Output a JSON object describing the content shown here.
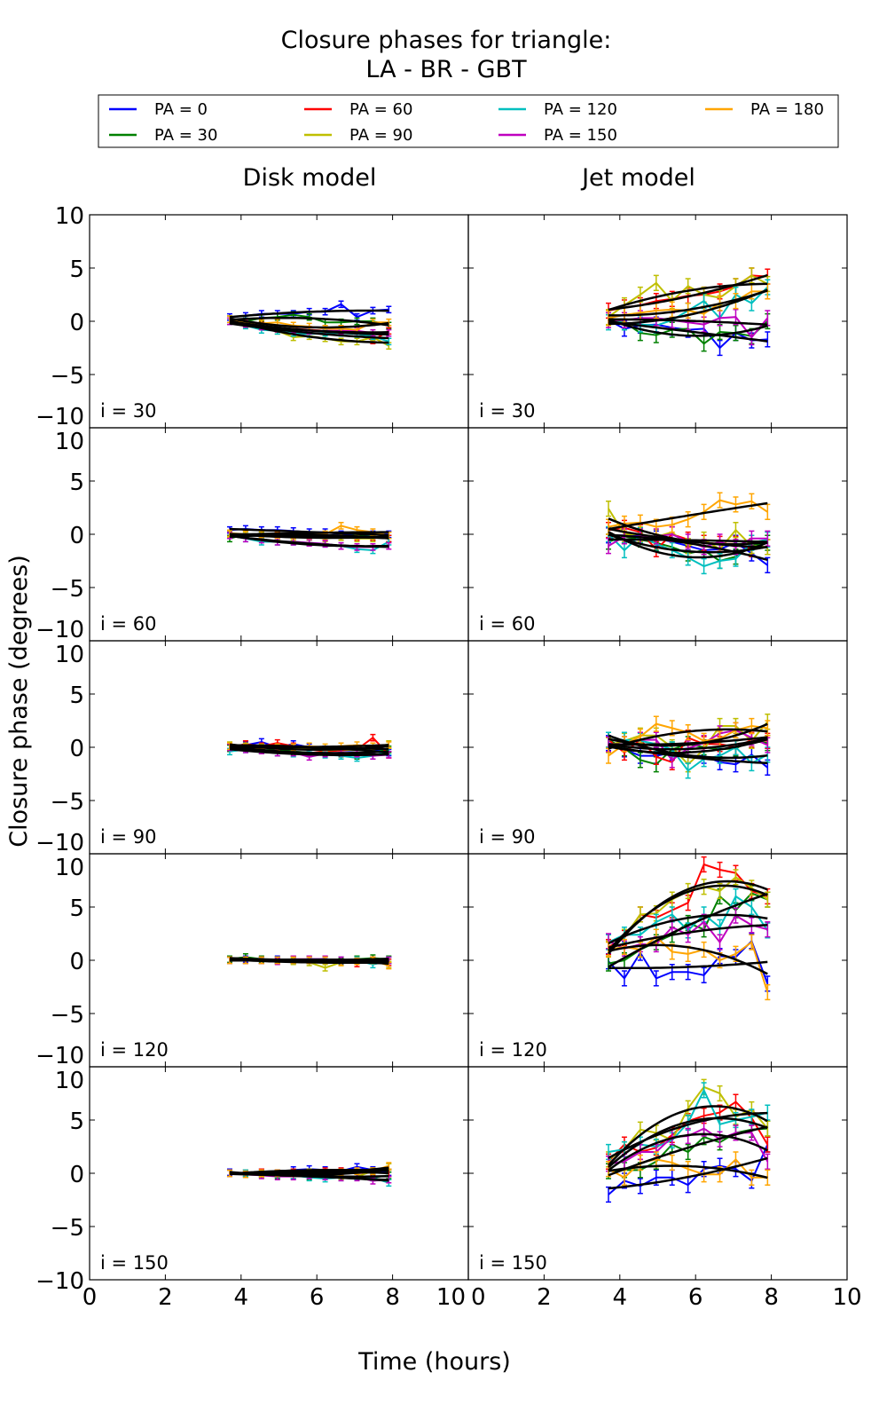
{
  "chart_data": {
    "type": "line",
    "title_line1": "Closure phases for triangle:",
    "title_line2": "LA - BR - GBT",
    "xlabel": "Time (hours)",
    "ylabel": "Closure phase (degrees)",
    "xlim": [
      0,
      10
    ],
    "ylim": [
      -10,
      10
    ],
    "xticks": [
      "0",
      "2",
      "4",
      "6",
      "8",
      "10"
    ],
    "yticks": [
      "10",
      "5",
      "0",
      "−5",
      "−10"
    ],
    "legend_placement": "top, above panels (4 columns)",
    "columns": [
      "Disk model",
      "Jet model"
    ],
    "rows": [
      "i = 30",
      "i = 60",
      "i = 90",
      "i = 120",
      "i = 150"
    ],
    "legend": [
      {
        "label": "PA = 0",
        "color": "#0000ff"
      },
      {
        "label": "PA = 30",
        "color": "#008000"
      },
      {
        "label": "PA = 60",
        "color": "#ff0000"
      },
      {
        "label": "PA = 90",
        "color": "#bfbf00"
      },
      {
        "label": "PA = 120",
        "color": "#00bfbf"
      },
      {
        "label": "PA = 150",
        "color": "#bf00bf"
      },
      {
        "label": "PA = 180",
        "color": "#ffa500"
      }
    ],
    "x": [
      3.7,
      4.12,
      4.54,
      4.96,
      5.38,
      5.8,
      6.22,
      6.64,
      7.06,
      7.48,
      7.9
    ],
    "error": {
      "Disk model": 0.3,
      "Jet model": 0.7
    },
    "panels": {
      "Disk model": [
        [
          [
            0.4,
            0.5,
            0.7,
            0.7,
            0.7,
            0.9,
            0.9,
            1.6,
            0.4,
            1.0,
            1.1
          ],
          [
            0.2,
            0,
            0.3,
            0.4,
            0.6,
            0.4,
            -0.1,
            -0.1,
            0,
            0,
            -0.4
          ],
          [
            0,
            -0.25,
            -0.4,
            -0.7,
            -0.7,
            -0.8,
            -0.9,
            -0.9,
            -1.1,
            -1.8,
            -0.9
          ],
          [
            0,
            -0.25,
            -0.5,
            -0.9,
            -1.5,
            -1.4,
            -1.6,
            -1.9,
            -1.9,
            -1.5,
            -2.3
          ],
          [
            0,
            -0.4,
            -0.8,
            -0.9,
            -1.1,
            -1.2,
            -1.1,
            -1.1,
            -1.2,
            -1.4,
            -1.9
          ],
          [
            0,
            -0.25,
            -0.5,
            -0.7,
            -0.8,
            -0.9,
            -0.9,
            -0.9,
            -0.9,
            -1.1,
            -1.1
          ],
          [
            0.2,
            -0.1,
            -0.2,
            -0.1,
            -0.4,
            -0.5,
            -0.7,
            -0.7,
            -0.8,
            -0.1,
            -0.1
          ]
        ],
        [
          [
            0.4,
            0.5,
            0.4,
            0.4,
            0.3,
            0.2,
            0.2,
            0,
            -0.1,
            0,
            0
          ],
          [
            -0.4,
            0,
            0,
            -0.1,
            -0.1,
            -0.1,
            -0.1,
            -0.25,
            -0.1,
            -0.25,
            -0.4
          ],
          [
            0,
            0,
            0,
            -0.1,
            -0.1,
            -0.25,
            -0.25,
            -0.25,
            -0.25,
            -0.25,
            -0.4
          ],
          [
            0,
            -0.1,
            -0.1,
            -0.25,
            -0.25,
            -0.25,
            -0.4,
            -0.25,
            -0.4,
            -0.4,
            -0.1
          ],
          [
            -0.1,
            -0.4,
            -0.7,
            -0.7,
            -0.7,
            -0.8,
            -0.9,
            -1.1,
            -1.4,
            -1.5,
            -0.7
          ],
          [
            -0.1,
            -0.4,
            -0.5,
            -0.7,
            -0.7,
            -0.8,
            -0.9,
            -1.1,
            -1.2,
            -1.2,
            -1.1
          ],
          [
            0.1,
            0,
            0,
            -0.05,
            -0.1,
            -0.1,
            0,
            0.8,
            0.4,
            0.2,
            -0.1
          ]
        ],
        [
          [
            0,
            0.2,
            0.5,
            0,
            0.3,
            0,
            -0.2,
            -0.3,
            -0.3,
            -0.2,
            -0.5
          ],
          [
            -0.1,
            0,
            -0.3,
            -0.2,
            -0.4,
            -0.5,
            -0.5,
            -0.6,
            -0.8,
            -0.5,
            -0.2
          ],
          [
            0,
            0.3,
            0.1,
            0.4,
            0.1,
            -0.2,
            -0.4,
            -0.3,
            -0.2,
            0.9,
            -0.7
          ],
          [
            0.2,
            0.1,
            0,
            -0.1,
            0,
            -0.2,
            -0.3,
            -0.2,
            -0.3,
            -0.1,
            0.3
          ],
          [
            -0.4,
            -0.2,
            -0.3,
            -0.5,
            -0.6,
            -0.6,
            -0.7,
            -0.8,
            -1.0,
            -0.8,
            -0.4
          ],
          [
            0,
            -0.2,
            -0.3,
            -0.5,
            -0.5,
            -0.9,
            -0.6,
            -0.5,
            -0.6,
            -0.8,
            -0.7
          ],
          [
            0.1,
            0,
            -0.1,
            0,
            0,
            0.1,
            0,
            0.1,
            0.2,
            0.1,
            0.2
          ]
        ],
        [
          [
            0,
            0.1,
            0,
            0.1,
            0,
            0.1,
            0.1,
            0,
            0.1,
            0,
            0
          ],
          [
            0.1,
            0.3,
            0.1,
            0,
            0.1,
            0,
            0,
            -0.1,
            0.1,
            0.2,
            0.1
          ],
          [
            0,
            0,
            0,
            0,
            0,
            0,
            0,
            0,
            -0.3,
            0,
            -0.2
          ],
          [
            0,
            0,
            0,
            0,
            -0.1,
            -0.2,
            -0.7,
            -0.2,
            0,
            0,
            -0.4
          ],
          [
            0,
            0,
            0,
            0,
            0,
            0,
            0,
            0,
            0,
            -0.4,
            0
          ],
          [
            0,
            0,
            0,
            -0.1,
            0.1,
            0.1,
            0.1,
            0,
            -0.1,
            0,
            0
          ],
          [
            0,
            0,
            0,
            0,
            0,
            0,
            0,
            -0.2,
            -0.1,
            0,
            -0.5
          ]
        ],
        [
          [
            0.1,
            0,
            0.1,
            0,
            0.3,
            0.4,
            0.3,
            0.2,
            0.6,
            0.3,
            0.1
          ],
          [
            0,
            0,
            -0.1,
            -0.2,
            -0.2,
            -0.3,
            -0.3,
            -0.3,
            -0.3,
            -0.4,
            -0.2
          ],
          [
            0,
            0,
            0.1,
            0,
            0.1,
            0.1,
            0.2,
            0.2,
            0,
            0.1,
            0
          ],
          [
            0,
            0,
            -0.1,
            -0.1,
            0,
            0.1,
            -0.2,
            -0.3,
            -0.3,
            0.2,
            0.6
          ],
          [
            0,
            0,
            0,
            -0.1,
            -0.2,
            -0.4,
            -0.5,
            -0.4,
            -0.3,
            -0.4,
            -0.9
          ],
          [
            0,
            -0.1,
            -0.2,
            -0.3,
            -0.3,
            -0.2,
            -0.3,
            -0.4,
            -0.4,
            -0.7,
            -0.6
          ],
          [
            0,
            -0.1,
            0,
            0,
            0,
            0,
            0,
            0.1,
            0.2,
            0.2,
            0.7
          ]
        ]
      ],
      "Jet model": [
        [
          [
            0.1,
            -0.7,
            -0.4,
            -0.3,
            -0.6,
            -0.8,
            -0.7,
            -2.5,
            -1.1,
            -1.8,
            -1.7
          ],
          [
            0.1,
            -0.1,
            -1.1,
            -1.3,
            -0.8,
            -0.7,
            -2.1,
            -1.0,
            -1.1,
            -1.4,
            0
          ],
          [
            1.0,
            1.3,
            1.5,
            1.9,
            2.1,
            2.4,
            2.5,
            2.8,
            3.3,
            4.3,
            4.2
          ],
          [
            0.4,
            1.5,
            2.5,
            3.6,
            1.9,
            3.3,
            2.5,
            2.2,
            3.3,
            4.3,
            3.5
          ],
          [
            -0.1,
            -0.1,
            -0.3,
            -0.4,
            0.1,
            1.0,
            1.9,
            0.3,
            2.5,
            1.7,
            3.2
          ],
          [
            0.1,
            0.1,
            0.3,
            0.3,
            0.1,
            -0.1,
            -0.3,
            0.3,
            0.4,
            -1.5,
            0.3
          ],
          [
            0.3,
            0.6,
            0.8,
            1.0,
            1.1,
            1.0,
            0.7,
            1.7,
            1.9,
            2.8,
            2.8
          ]
        ],
        [
          [
            -0.1,
            -0.1,
            -0.1,
            -0.4,
            -0.7,
            -1.1,
            -1.5,
            -1.4,
            -0.8,
            -1.8,
            -2.9
          ],
          [
            -0.7,
            -0.2,
            -0.5,
            -0.8,
            -1.2,
            -1.8,
            -1.5,
            -2.5,
            -2.1,
            -1.1,
            -0.8
          ],
          [
            0.4,
            0.6,
            0.2,
            -1.4,
            0,
            -0.5,
            -0.8,
            -0.9,
            -0.9,
            -1.4,
            -1.2
          ],
          [
            2.4,
            0,
            0,
            -0.25,
            0.2,
            -1.1,
            -0.5,
            -1.4,
            0.4,
            -1.1,
            -1.2
          ],
          [
            0,
            -1.5,
            -0.1,
            -0.9,
            -1.5,
            -2.2,
            -3.0,
            -2.5,
            -2.3,
            -0.8,
            -0.5
          ],
          [
            -1.1,
            -0.2,
            -0.2,
            -0.2,
            0,
            -0.7,
            -1.2,
            -0.7,
            -1.2,
            -0.4,
            -0.4
          ],
          [
            0.7,
            1.0,
            1.1,
            0.7,
            0.9,
            1.4,
            2.1,
            3.2,
            2.8,
            3.1,
            2.1
          ]
        ],
        [
          [
            0.4,
            -0.2,
            -0.8,
            -0.8,
            -0.5,
            -0.8,
            -0.8,
            -1.4,
            -1.6,
            -0.7,
            -1.9
          ],
          [
            0.7,
            -0.1,
            -1.2,
            -1.6,
            -0.2,
            0.3,
            0,
            -0.2,
            -0.1,
            0.6,
            0.4
          ],
          [
            0.7,
            -0.5,
            0.7,
            -0.9,
            -1.4,
            0.9,
            0.3,
            0.3,
            0,
            0.7,
            0.6
          ],
          [
            0.2,
            0.6,
            1.1,
            1.1,
            0,
            -1.6,
            -0.2,
            2.0,
            2.0,
            0.6,
            2.4
          ],
          [
            0.7,
            0.7,
            0.6,
            0.3,
            -0.2,
            -2.2,
            -1.1,
            -0.8,
            0,
            -1.5,
            -0.7
          ],
          [
            0.3,
            0.3,
            0.7,
            0.7,
            -1.2,
            -0.1,
            0.4,
            1.3,
            1.6,
            0.9,
            0.2
          ],
          [
            -0.8,
            0.3,
            1.0,
            2.2,
            1.8,
            1.4,
            0.6,
            0.8,
            1.6,
            2.0,
            1.8
          ]
        ],
        [
          [
            -0.1,
            -1.7,
            0.7,
            -1.7,
            -1.1,
            -1.1,
            -1.4,
            0.4,
            0.3,
            1.8,
            -2.2
          ],
          [
            -0.3,
            0,
            1.0,
            1.7,
            2.4,
            3.5,
            2.9,
            6.0,
            4.7,
            6.3,
            5.7
          ],
          [
            1.25,
            2.1,
            4.3,
            4.0,
            4.7,
            5.4,
            9.0,
            8.5,
            8.2,
            6.5,
            6.0
          ],
          [
            1.1,
            2.2,
            4.3,
            4.4,
            5.7,
            6.5,
            6.9,
            6.5,
            7.8,
            6.8,
            5.7
          ],
          [
            1.7,
            2.4,
            2.4,
            3.6,
            4.3,
            2.8,
            4.3,
            3.1,
            6.0,
            5.0,
            2.8
          ],
          [
            1.8,
            1.1,
            1.5,
            1.5,
            3.1,
            2.4,
            3.6,
            1.7,
            4.2,
            3.3,
            2.9
          ],
          [
            1.0,
            1.25,
            1.0,
            2.2,
            0.8,
            0.6,
            1.0,
            0,
            0.6,
            1.7,
            -3.0
          ]
        ],
        [
          [
            -2.0,
            -0.7,
            -1.2,
            -0.4,
            -0.4,
            -1.1,
            0.4,
            0.7,
            0.4,
            -0.7,
            2.7
          ],
          [
            0.2,
            0.3,
            0.3,
            1.1,
            2.7,
            2.0,
            3.4,
            2.9,
            3.8,
            4.1,
            4.2
          ],
          [
            1.1,
            2.7,
            2.0,
            2.4,
            3.6,
            4.9,
            5.4,
            5.7,
            6.7,
            5.2,
            2.7
          ],
          [
            1.3,
            2.25,
            4.1,
            3.8,
            3.1,
            6.1,
            8.1,
            7.5,
            5.3,
            6.0,
            4.2
          ],
          [
            2.0,
            2.25,
            2.7,
            2.5,
            3.1,
            4.75,
            7.8,
            4.6,
            5.0,
            5.3,
            5.7
          ],
          [
            0.9,
            1.1,
            2.0,
            2.0,
            3.4,
            3.5,
            4.2,
            3.2,
            3.8,
            3.8,
            1.1
          ],
          [
            0.4,
            -0.4,
            1.0,
            1.3,
            1.0,
            0.4,
            -0.1,
            -0.1,
            1.3,
            -0.4,
            -0.4
          ]
        ]
      ]
    }
  }
}
